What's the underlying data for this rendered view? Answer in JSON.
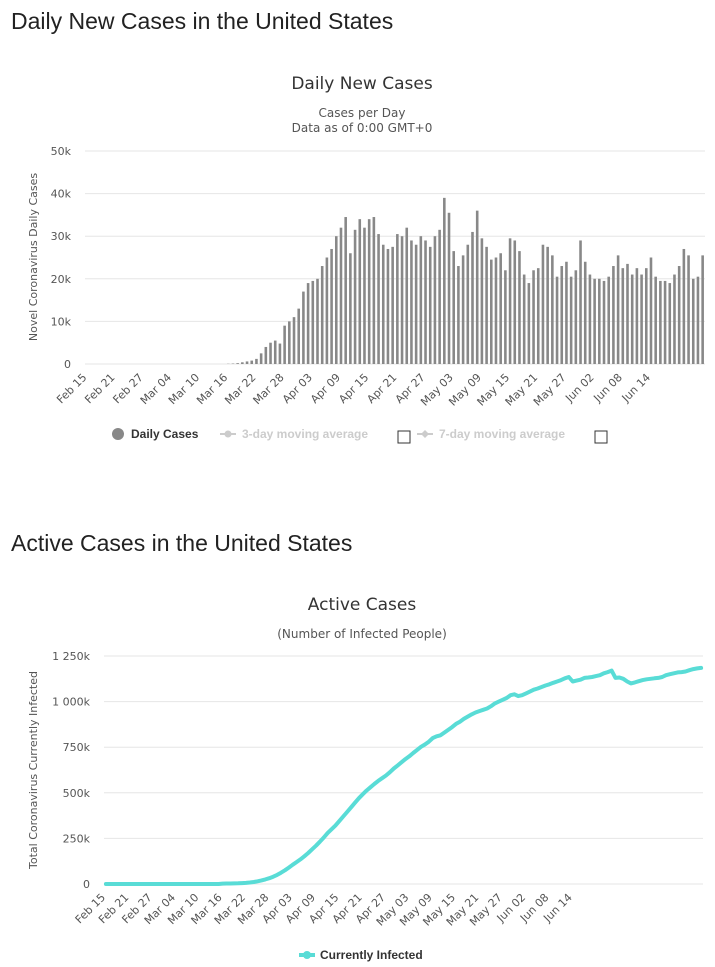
{
  "page": {
    "daily_heading": "Daily New Cases in the United States",
    "active_heading": "Active Cases in the United States"
  },
  "colors": {
    "bar": "#888888",
    "active_line": "#59dcd6",
    "legend_inactive": "#cccccc"
  },
  "chart_data": [
    {
      "type": "bar",
      "title": "Daily New Cases",
      "subtitle_line1": "Cases per Day",
      "subtitle_line2": "Data as of 0:00 GMT+0",
      "ylabel": "Novel Coronavirus Daily Cases",
      "ylim": [
        0,
        50000
      ],
      "yticks": [
        0,
        10000,
        20000,
        30000,
        40000,
        50000
      ],
      "ytick_labels": [
        "0",
        "10k",
        "20k",
        "30k",
        "40k",
        "50k"
      ],
      "x_tick_labels": [
        "Feb 15",
        "Feb 21",
        "Feb 27",
        "Mar 04",
        "Mar 10",
        "Mar 16",
        "Mar 22",
        "Mar 28",
        "Apr 03",
        "Apr 09",
        "Apr 15",
        "Apr 21",
        "Apr 27",
        "May 03",
        "May 09",
        "May 15",
        "May 21",
        "May 27",
        "Jun 02",
        "Jun 08",
        "Jun 14"
      ],
      "start_date": "Feb 15",
      "values": [
        0,
        0,
        0,
        0,
        0,
        0,
        0,
        0,
        0,
        0,
        0,
        0,
        0,
        0,
        0,
        0,
        0,
        0,
        0,
        0,
        0,
        0,
        0,
        0,
        0,
        0,
        0,
        0,
        0,
        0,
        50,
        100,
        200,
        400,
        600,
        800,
        1200,
        2500,
        4000,
        5000,
        5500,
        4800,
        9000,
        10000,
        11000,
        13000,
        17000,
        19000,
        19500,
        20000,
        23000,
        25000,
        27000,
        30000,
        32000,
        34500,
        26000,
        31500,
        34000,
        32000,
        34000,
        34500,
        30500,
        28000,
        27000,
        27500,
        30500,
        30000,
        32000,
        29000,
        28000,
        30000,
        29000,
        27500,
        30000,
        31500,
        39000,
        35500,
        26500,
        23000,
        25500,
        28000,
        31000,
        36000,
        29500,
        27500,
        24500,
        25000,
        26000,
        22000,
        29500,
        29000,
        26500,
        21000,
        19000,
        22000,
        22500,
        28000,
        27500,
        25500,
        20500,
        23000,
        24000,
        20500,
        22000,
        29000,
        24000,
        21000,
        20000,
        20000,
        19500,
        20500,
        23000,
        25500,
        22500,
        23500,
        21000,
        22500,
        21000,
        22500,
        25000,
        20500,
        19500,
        19500,
        19000,
        21000,
        23000,
        27000,
        25500,
        20000,
        20500,
        25500
      ]
    },
    {
      "type": "line",
      "title": "Active Cases",
      "subtitle": "(Number of Infected People)",
      "ylabel": "Total Coronavirus Currently Infected",
      "ylim": [
        0,
        1250000
      ],
      "yticks": [
        0,
        250000,
        500000,
        750000,
        1000000,
        1250000
      ],
      "ytick_labels": [
        "0",
        "250k",
        "500k",
        "750k",
        "1 000k",
        "1 250k"
      ],
      "x_tick_labels": [
        "Feb 15",
        "Feb 21",
        "Feb 27",
        "Mar 04",
        "Mar 10",
        "Mar 16",
        "Mar 22",
        "Mar 28",
        "Apr 03",
        "Apr 09",
        "Apr 15",
        "Apr 21",
        "Apr 27",
        "May 03",
        "May 09",
        "May 15",
        "May 21",
        "May 27",
        "Jun 02",
        "Jun 08",
        "Jun 14"
      ],
      "series": [
        {
          "name": "Currently Infected",
          "values": [
            0,
            0,
            0,
            0,
            0,
            0,
            0,
            0,
            0,
            0,
            0,
            0,
            0,
            0,
            0,
            0,
            0,
            0,
            0,
            0,
            0,
            0,
            0,
            0,
            0,
            0,
            0,
            0,
            0,
            0,
            2000,
            2500,
            3000,
            3500,
            4000,
            5000,
            6000,
            8000,
            11000,
            15000,
            20000,
            25000,
            32000,
            40000,
            50000,
            62000,
            75000,
            90000,
            105000,
            120000,
            135000,
            152000,
            170000,
            190000,
            210000,
            232000,
            255000,
            280000,
            300000,
            320000,
            345000,
            370000,
            395000,
            420000,
            445000,
            470000,
            492000,
            512000,
            530000,
            548000,
            565000,
            580000,
            595000,
            613000,
            633000,
            650000,
            668000,
            685000,
            700000,
            718000,
            735000,
            752000,
            765000,
            780000,
            800000,
            810000,
            815000,
            830000,
            845000,
            860000,
            878000,
            890000,
            905000,
            918000,
            930000,
            940000,
            948000,
            955000,
            962000,
            975000,
            990000,
            1000000,
            1010000,
            1020000,
            1035000,
            1040000,
            1030000,
            1035000,
            1045000,
            1055000,
            1065000,
            1072000,
            1080000,
            1088000,
            1095000,
            1103000,
            1110000,
            1118000,
            1128000,
            1135000,
            1110000,
            1115000,
            1120000,
            1130000,
            1132000,
            1135000,
            1140000,
            1145000,
            1155000,
            1162000,
            1170000,
            1130000,
            1132000,
            1125000,
            1110000,
            1100000,
            1105000,
            1112000,
            1118000,
            1122000,
            1125000,
            1128000,
            1130000,
            1135000,
            1145000,
            1150000,
            1155000,
            1160000,
            1162000,
            1165000,
            1172000,
            1178000,
            1182000,
            1185000
          ]
        }
      ]
    }
  ],
  "legend": {
    "daily_cases": "Daily Cases",
    "ma3": "3-day moving average",
    "ma7": "7-day moving average",
    "currently_infected": "Currently Infected"
  }
}
